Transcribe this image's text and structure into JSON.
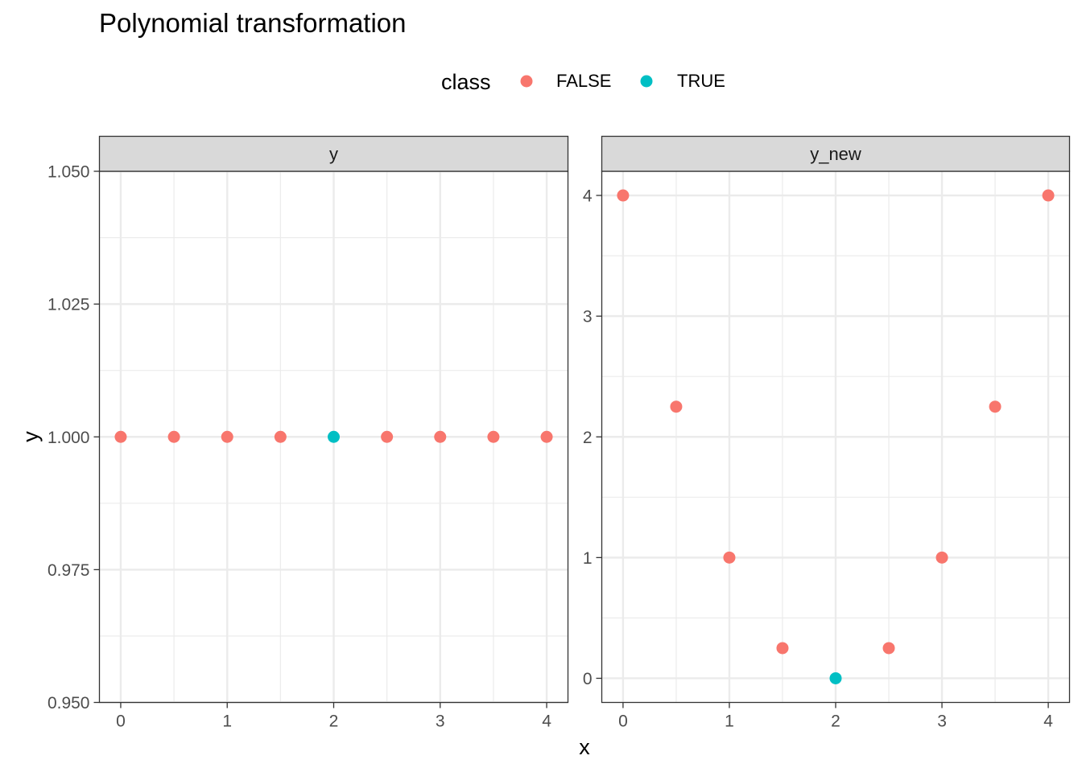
{
  "chart_data": {
    "type": "scatter",
    "title": "Polynomial transformation",
    "xlabel": "x",
    "ylabel": "y",
    "legend": {
      "title": "class",
      "position": "top",
      "entries": [
        {
          "label": "FALSE",
          "color": "#F8766D"
        },
        {
          "label": "TRUE",
          "color": "#00BFC4"
        }
      ]
    },
    "grid": true,
    "facets": [
      {
        "label": "y",
        "xlim": [
          -0.2,
          4.2
        ],
        "ylim": [
          0.95,
          1.05
        ],
        "x_ticks": [
          "0",
          "1",
          "2",
          "3",
          "4"
        ],
        "y_ticks": [
          "0.950",
          "0.975",
          "1.000",
          "1.025",
          "1.050"
        ],
        "points": [
          {
            "x": 0,
            "y": 1,
            "class": "FALSE"
          },
          {
            "x": 0.5,
            "y": 1,
            "class": "FALSE"
          },
          {
            "x": 1,
            "y": 1,
            "class": "FALSE"
          },
          {
            "x": 1.5,
            "y": 1,
            "class": "FALSE"
          },
          {
            "x": 2,
            "y": 1,
            "class": "TRUE"
          },
          {
            "x": 2.5,
            "y": 1,
            "class": "FALSE"
          },
          {
            "x": 3,
            "y": 1,
            "class": "FALSE"
          },
          {
            "x": 3.5,
            "y": 1,
            "class": "FALSE"
          },
          {
            "x": 4,
            "y": 1,
            "class": "FALSE"
          }
        ]
      },
      {
        "label": "y_new",
        "xlim": [
          -0.2,
          4.2
        ],
        "ylim": [
          -0.2,
          4.2
        ],
        "x_ticks": [
          "0",
          "1",
          "2",
          "3",
          "4"
        ],
        "y_ticks": [
          "0",
          "1",
          "2",
          "3",
          "4"
        ],
        "points": [
          {
            "x": 0,
            "y": 4,
            "class": "FALSE"
          },
          {
            "x": 0.5,
            "y": 2.25,
            "class": "FALSE"
          },
          {
            "x": 1,
            "y": 1,
            "class": "FALSE"
          },
          {
            "x": 1.5,
            "y": 0.25,
            "class": "FALSE"
          },
          {
            "x": 2,
            "y": 0,
            "class": "TRUE"
          },
          {
            "x": 2.5,
            "y": 0.25,
            "class": "FALSE"
          },
          {
            "x": 3,
            "y": 1,
            "class": "FALSE"
          },
          {
            "x": 3.5,
            "y": 2.25,
            "class": "FALSE"
          },
          {
            "x": 4,
            "y": 4,
            "class": "FALSE"
          }
        ]
      }
    ]
  }
}
